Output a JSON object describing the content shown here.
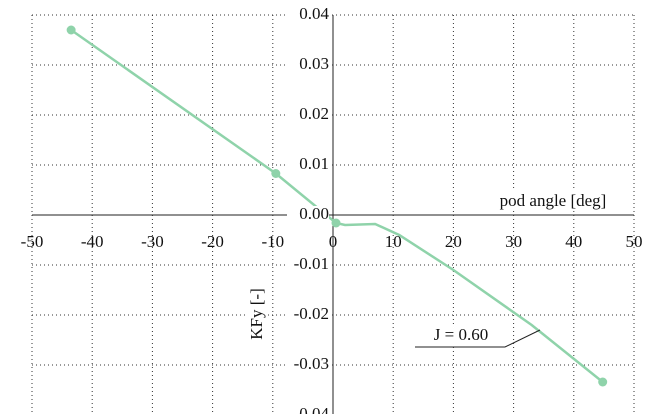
{
  "chart_data": {
    "type": "line",
    "x_label": "pod angle [deg]",
    "y_label": "KFy [-]",
    "annotation": "J = 0.60",
    "xlim": [
      -50,
      50
    ],
    "xticks": [
      -50,
      -40,
      -30,
      -20,
      -10,
      0,
      10,
      20,
      30,
      40,
      50
    ],
    "ylim": [
      -0.04,
      0.04
    ],
    "yticks": [
      {
        "value": -0.04,
        "label": "-0.04"
      },
      {
        "value": -0.03,
        "label": "-0.03"
      },
      {
        "value": -0.02,
        "label": "-0.02"
      },
      {
        "value": -0.01,
        "label": "-0.01"
      },
      {
        "value": 0,
        "label": "0.00"
      },
      {
        "value": 0.01,
        "label": "0.01"
      },
      {
        "value": 0.02,
        "label": "0.02"
      },
      {
        "value": 0.03,
        "label": "0.03"
      },
      {
        "value": 0.04,
        "label": "0.04"
      }
    ],
    "grid": true,
    "color": "#8fd3aa",
    "line": {
      "x": [
        -43.5,
        -9.5,
        0.5,
        2,
        7,
        11,
        20,
        33,
        44.8
      ],
      "values": [
        0.037,
        0.0083,
        -0.0016,
        -0.002,
        -0.0018,
        -0.004,
        -0.011,
        -0.022,
        -0.0334
      ]
    },
    "points": {
      "x": [
        -43.5,
        -9.5,
        0.5,
        44.8
      ],
      "values": [
        0.037,
        0.0083,
        -0.0016,
        -0.0334
      ]
    }
  }
}
